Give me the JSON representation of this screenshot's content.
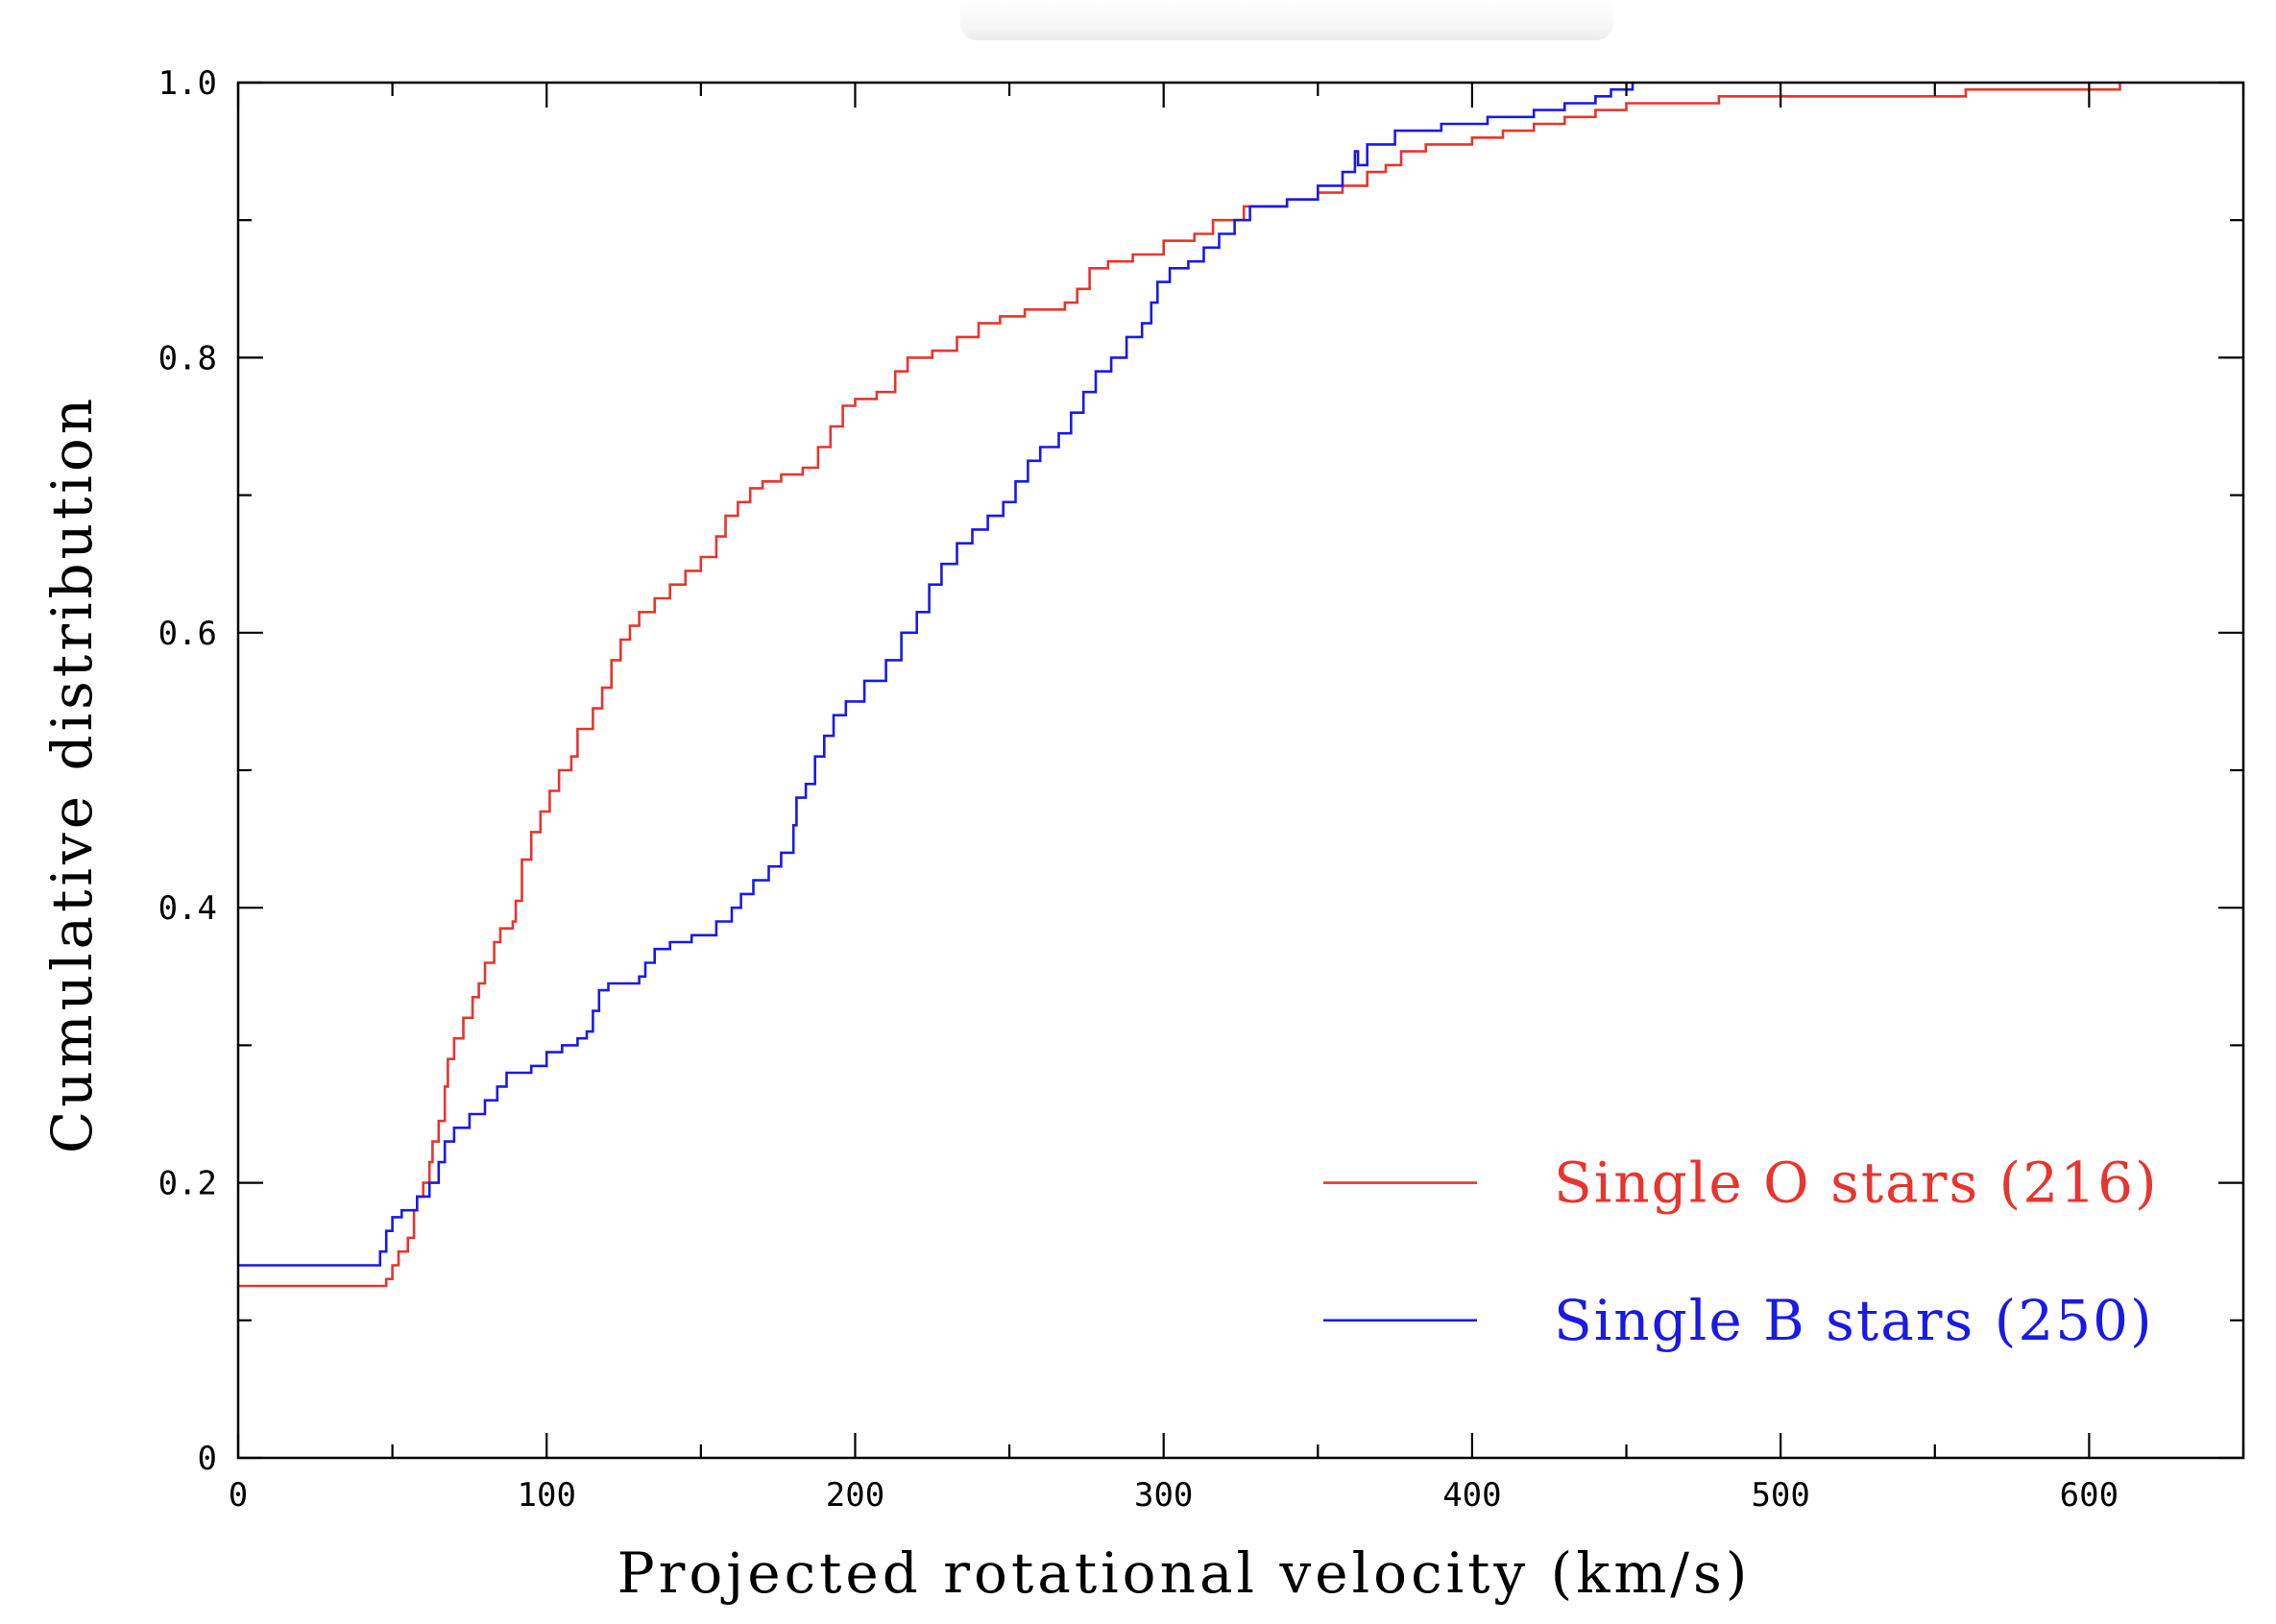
{
  "chart_data": {
    "type": "line",
    "title": "",
    "xlabel": "Projected rotational velocity (km/s)",
    "ylabel": "Cumulative distribution",
    "xlim": [
      0,
      650
    ],
    "ylim": [
      0,
      1.0
    ],
    "x_ticks": [
      0,
      100,
      200,
      300,
      400,
      500,
      600
    ],
    "x_tick_labels": [
      "0",
      "100",
      "200",
      "300",
      "400",
      "500",
      "600"
    ],
    "y_ticks": [
      0,
      0.2,
      0.4,
      0.6,
      0.8,
      1.0
    ],
    "y_tick_labels": [
      "0",
      "0.2",
      "0.4",
      "0.6",
      "0.8",
      "1.0"
    ],
    "grid": false,
    "legend_position": "bottom-right",
    "series": [
      {
        "name": "Single O stars (216)",
        "legend_label": "Single O stars (216)",
        "color": "#e8352e",
        "step": true,
        "points": [
          [
            0,
            0.125
          ],
          [
            45,
            0.125
          ],
          [
            48,
            0.13
          ],
          [
            50,
            0.14
          ],
          [
            52,
            0.15
          ],
          [
            55,
            0.16
          ],
          [
            57,
            0.18
          ],
          [
            58,
            0.19
          ],
          [
            60,
            0.2
          ],
          [
            62,
            0.215
          ],
          [
            63,
            0.23
          ],
          [
            65,
            0.245
          ],
          [
            67,
            0.27
          ],
          [
            68,
            0.29
          ],
          [
            70,
            0.305
          ],
          [
            73,
            0.32
          ],
          [
            76,
            0.335
          ],
          [
            78,
            0.345
          ],
          [
            80,
            0.36
          ],
          [
            83,
            0.375
          ],
          [
            85,
            0.385
          ],
          [
            89,
            0.39
          ],
          [
            90,
            0.405
          ],
          [
            92,
            0.435
          ],
          [
            95,
            0.455
          ],
          [
            98,
            0.47
          ],
          [
            101,
            0.485
          ],
          [
            104,
            0.5
          ],
          [
            108,
            0.51
          ],
          [
            110,
            0.53
          ],
          [
            115,
            0.545
          ],
          [
            118,
            0.56
          ],
          [
            121,
            0.58
          ],
          [
            124,
            0.595
          ],
          [
            127,
            0.605
          ],
          [
            130,
            0.615
          ],
          [
            135,
            0.625
          ],
          [
            140,
            0.635
          ],
          [
            145,
            0.645
          ],
          [
            150,
            0.655
          ],
          [
            155,
            0.67
          ],
          [
            158,
            0.685
          ],
          [
            162,
            0.695
          ],
          [
            166,
            0.705
          ],
          [
            170,
            0.71
          ],
          [
            176,
            0.715
          ],
          [
            183,
            0.72
          ],
          [
            188,
            0.735
          ],
          [
            192,
            0.75
          ],
          [
            196,
            0.765
          ],
          [
            200,
            0.77
          ],
          [
            207,
            0.775
          ],
          [
            213,
            0.79
          ],
          [
            217,
            0.8
          ],
          [
            225,
            0.805
          ],
          [
            233,
            0.815
          ],
          [
            240,
            0.825
          ],
          [
            247,
            0.83
          ],
          [
            255,
            0.835
          ],
          [
            268,
            0.84
          ],
          [
            272,
            0.85
          ],
          [
            276,
            0.865
          ],
          [
            282,
            0.87
          ],
          [
            290,
            0.875
          ],
          [
            300,
            0.885
          ],
          [
            310,
            0.89
          ],
          [
            316,
            0.9
          ],
          [
            326,
            0.91
          ],
          [
            340,
            0.915
          ],
          [
            350,
            0.92
          ],
          [
            358,
            0.925
          ],
          [
            366,
            0.935
          ],
          [
            372,
            0.94
          ],
          [
            377,
            0.95
          ],
          [
            385,
            0.955
          ],
          [
            400,
            0.96
          ],
          [
            410,
            0.965
          ],
          [
            420,
            0.97
          ],
          [
            430,
            0.975
          ],
          [
            440,
            0.98
          ],
          [
            450,
            0.985
          ],
          [
            480,
            0.99
          ],
          [
            560,
            0.995
          ],
          [
            610,
            1.0
          ]
        ]
      },
      {
        "name": "Single B stars (250)",
        "legend_label": "Single B stars (250)",
        "color": "#1a1ae6",
        "step": true,
        "points": [
          [
            0,
            0.14
          ],
          [
            43,
            0.14
          ],
          [
            46,
            0.15
          ],
          [
            48,
            0.165
          ],
          [
            50,
            0.175
          ],
          [
            53,
            0.18
          ],
          [
            58,
            0.19
          ],
          [
            62,
            0.2
          ],
          [
            65,
            0.215
          ],
          [
            67,
            0.23
          ],
          [
            70,
            0.24
          ],
          [
            75,
            0.25
          ],
          [
            80,
            0.26
          ],
          [
            84,
            0.27
          ],
          [
            87,
            0.28
          ],
          [
            95,
            0.285
          ],
          [
            100,
            0.295
          ],
          [
            105,
            0.3
          ],
          [
            110,
            0.305
          ],
          [
            113,
            0.31
          ],
          [
            115,
            0.325
          ],
          [
            117,
            0.34
          ],
          [
            120,
            0.345
          ],
          [
            130,
            0.35
          ],
          [
            132,
            0.36
          ],
          [
            135,
            0.37
          ],
          [
            140,
            0.375
          ],
          [
            147,
            0.38
          ],
          [
            155,
            0.39
          ],
          [
            160,
            0.4
          ],
          [
            163,
            0.41
          ],
          [
            167,
            0.42
          ],
          [
            172,
            0.43
          ],
          [
            176,
            0.44
          ],
          [
            180,
            0.46
          ],
          [
            181,
            0.48
          ],
          [
            184,
            0.49
          ],
          [
            187,
            0.51
          ],
          [
            190,
            0.525
          ],
          [
            193,
            0.54
          ],
          [
            197,
            0.55
          ],
          [
            203,
            0.565
          ],
          [
            210,
            0.58
          ],
          [
            215,
            0.6
          ],
          [
            220,
            0.615
          ],
          [
            224,
            0.635
          ],
          [
            228,
            0.65
          ],
          [
            233,
            0.665
          ],
          [
            238,
            0.675
          ],
          [
            243,
            0.685
          ],
          [
            248,
            0.695
          ],
          [
            252,
            0.71
          ],
          [
            256,
            0.725
          ],
          [
            260,
            0.735
          ],
          [
            266,
            0.745
          ],
          [
            270,
            0.76
          ],
          [
            274,
            0.775
          ],
          [
            278,
            0.79
          ],
          [
            283,
            0.8
          ],
          [
            288,
            0.815
          ],
          [
            293,
            0.825
          ],
          [
            296,
            0.84
          ],
          [
            298,
            0.855
          ],
          [
            302,
            0.865
          ],
          [
            308,
            0.87
          ],
          [
            313,
            0.88
          ],
          [
            318,
            0.89
          ],
          [
            323,
            0.9
          ],
          [
            328,
            0.91
          ],
          [
            340,
            0.915
          ],
          [
            350,
            0.925
          ],
          [
            358,
            0.935
          ],
          [
            362,
            0.95
          ],
          [
            363,
            0.94
          ],
          [
            366,
            0.955
          ],
          [
            375,
            0.965
          ],
          [
            390,
            0.97
          ],
          [
            405,
            0.975
          ],
          [
            420,
            0.98
          ],
          [
            430,
            0.985
          ],
          [
            440,
            0.99
          ],
          [
            445,
            0.995
          ],
          [
            452,
            1.0
          ]
        ]
      }
    ]
  }
}
